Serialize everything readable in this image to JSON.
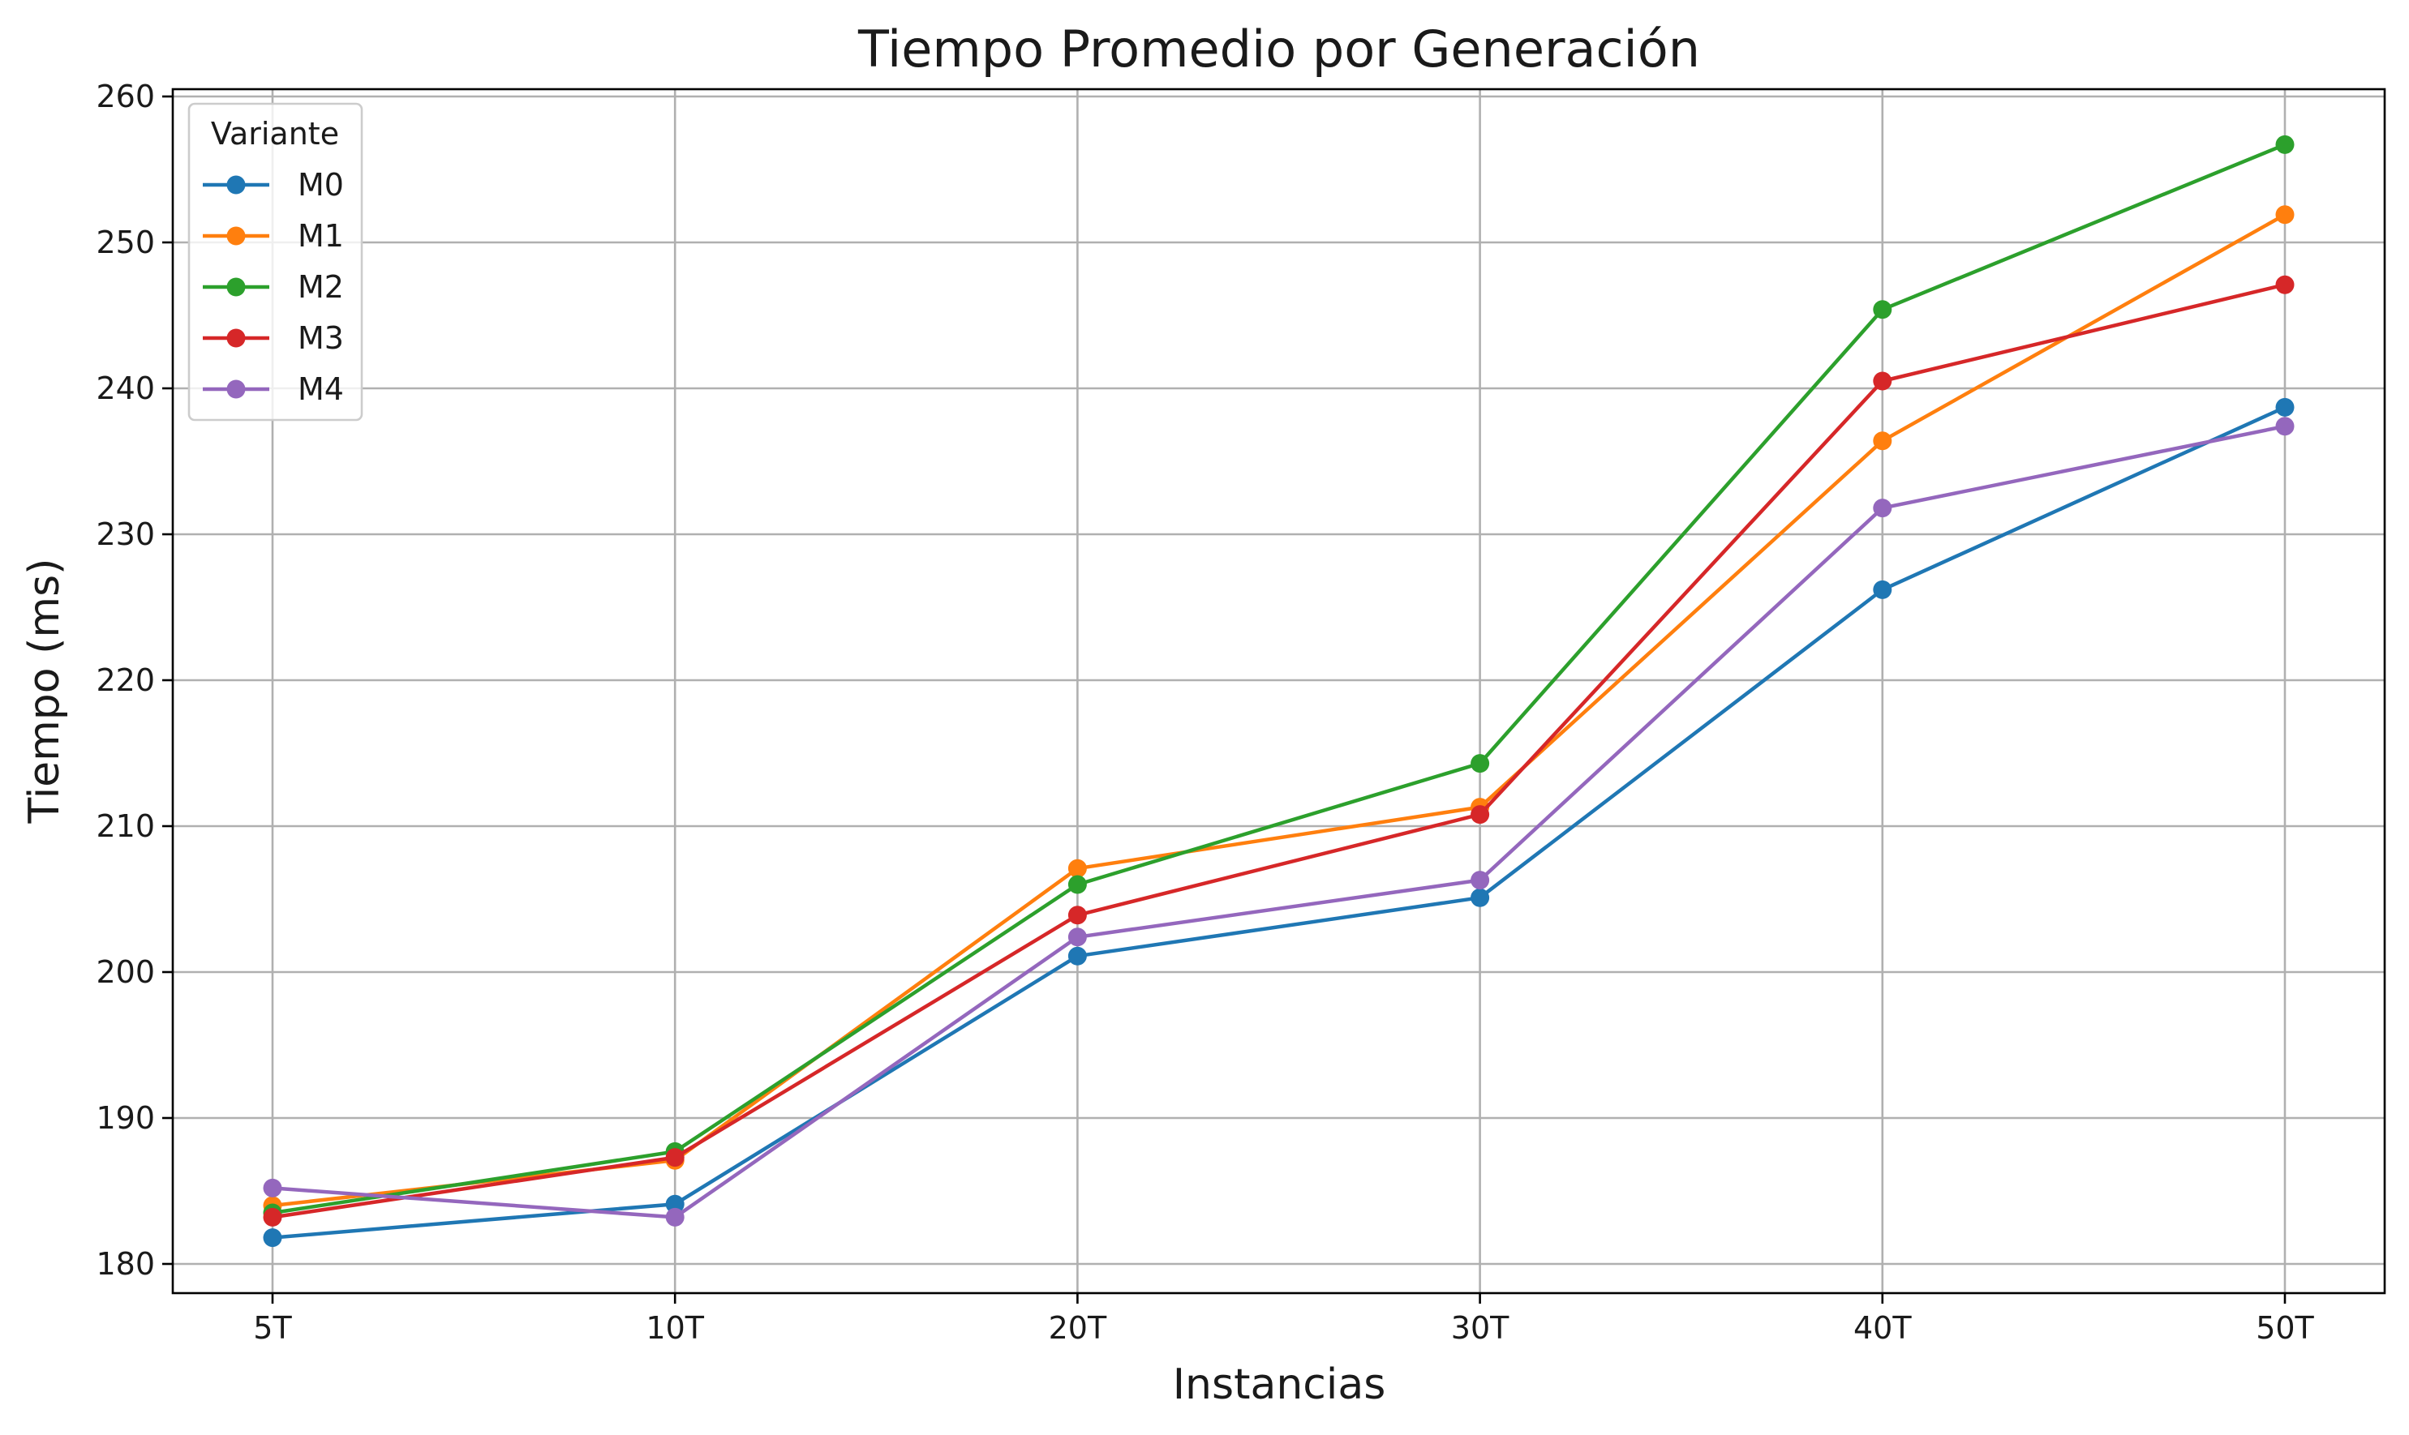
{
  "chart_data": {
    "type": "line",
    "title": "Tiempo Promedio por Generación",
    "xlabel": "Instancias",
    "ylabel": "Tiempo (ms)",
    "categories": [
      "5T",
      "10T",
      "20T",
      "30T",
      "40T",
      "50T"
    ],
    "ylim": [
      178,
      260.5
    ],
    "yticks": [
      180,
      190,
      200,
      210,
      220,
      230,
      240,
      250,
      260
    ],
    "grid": true,
    "legend": {
      "title": "Variante",
      "placement": "top-left"
    },
    "series": [
      {
        "name": "M0",
        "color": "#1f77b4",
        "values": [
          181.8,
          184.1,
          201.1,
          205.1,
          226.2,
          238.7
        ]
      },
      {
        "name": "M1",
        "color": "#ff7f0e",
        "values": [
          184.0,
          187.1,
          207.1,
          211.3,
          236.4,
          251.9
        ]
      },
      {
        "name": "M2",
        "color": "#2ca02c",
        "values": [
          183.5,
          187.7,
          206.0,
          214.3,
          245.4,
          256.7
        ]
      },
      {
        "name": "M3",
        "color": "#d62728",
        "values": [
          183.2,
          187.3,
          203.9,
          210.8,
          240.5,
          247.1
        ]
      },
      {
        "name": "M4",
        "color": "#9467bd",
        "values": [
          185.2,
          183.2,
          202.4,
          206.3,
          231.8,
          237.4
        ]
      }
    ]
  }
}
